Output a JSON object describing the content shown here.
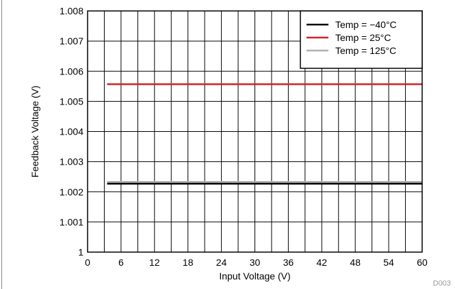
{
  "chart_data": {
    "type": "line",
    "title": "",
    "xlabel": "Input Voltage (V)",
    "ylabel": "Feedback Voltage (V)",
    "xlim": [
      0,
      60
    ],
    "ylim": [
      1,
      1.008
    ],
    "x_ticks": [
      0,
      6,
      12,
      18,
      24,
      30,
      36,
      42,
      48,
      54,
      60
    ],
    "x_minor_step": 3,
    "y_ticks": [
      1,
      1.001,
      1.002,
      1.003,
      1.004,
      1.005,
      1.006,
      1.007,
      1.008
    ],
    "y_tick_labels": [
      "1",
      "1.001",
      "1.002",
      "1.003",
      "1.004",
      "1.005",
      "1.006",
      "1.007",
      "1.008"
    ],
    "grid": true,
    "legend_position": "top-right",
    "series": [
      {
        "name": "Temp = −40°C",
        "color": "#000000",
        "x": [
          3.5,
          60
        ],
        "y": [
          1.00227,
          1.00227
        ]
      },
      {
        "name": "Temp = 25°C",
        "color": "#d42027",
        "x": [
          3.5,
          60
        ],
        "y": [
          1.00557,
          1.00557
        ]
      },
      {
        "name": "Temp = 125°C",
        "color": "#b0b0b0",
        "x": [
          3.5,
          60
        ],
        "y": [
          1.00233,
          1.00233
        ]
      }
    ],
    "figure_id": "D003"
  }
}
